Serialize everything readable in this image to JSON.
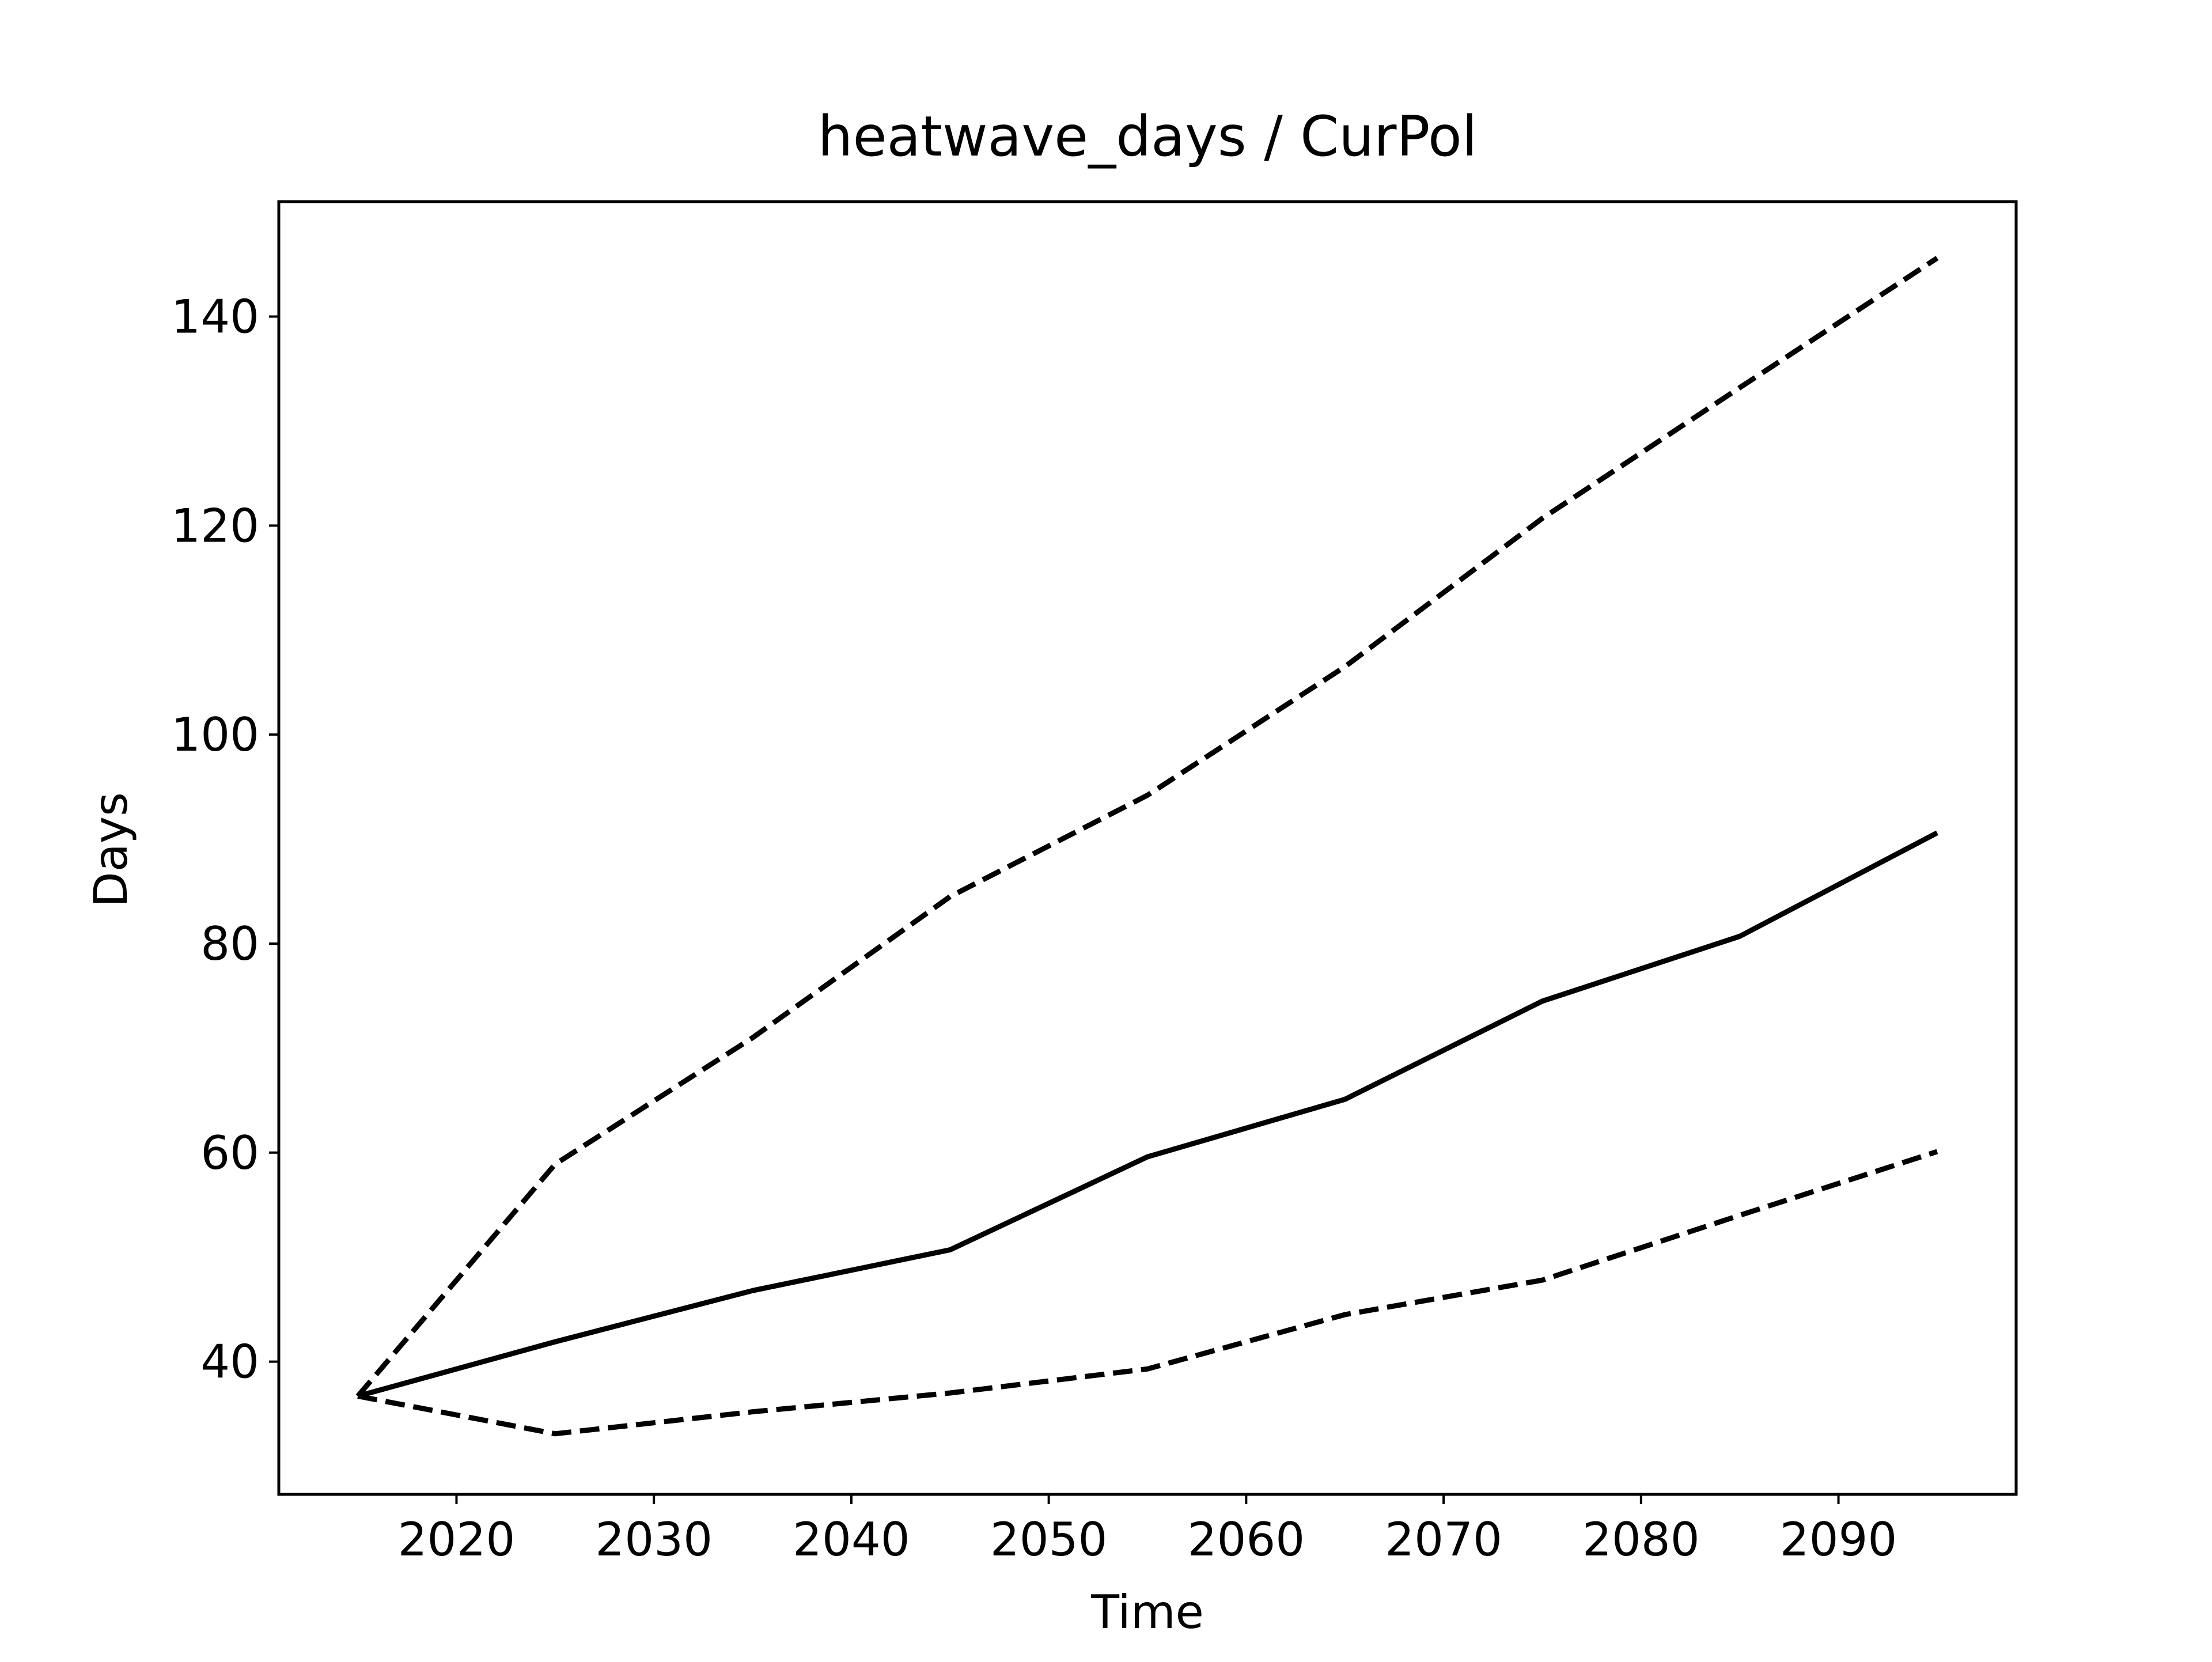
{
  "chart_data": {
    "type": "line",
    "title": "heatwave_days / CurPol",
    "xlabel": "Time",
    "ylabel": "Days",
    "x": [
      2015,
      2025,
      2035,
      2045,
      2055,
      2065,
      2075,
      2085,
      2095
    ],
    "series": [
      {
        "values": [
          36.7,
          58.9,
          71.0,
          84.5,
          94.2,
          106.5,
          120.7,
          133.2,
          145.6
        ],
        "style": "dashed",
        "color": "#000000"
      },
      {
        "values": [
          36.7,
          41.9,
          46.8,
          50.7,
          59.6,
          65.1,
          74.5,
          80.7,
          90.6
        ],
        "style": "solid",
        "color": "#000000"
      },
      {
        "values": [
          36.7,
          33.1,
          35.2,
          37.0,
          39.3,
          44.5,
          47.8,
          54.0,
          60.1
        ],
        "style": "dashed",
        "color": "#000000"
      }
    ],
    "xlim": [
      2011,
      2099
    ],
    "ylim": [
      27.3,
      151.0
    ],
    "xticks": [
      2020,
      2030,
      2040,
      2050,
      2060,
      2070,
      2080,
      2090
    ],
    "yticks": [
      40,
      60,
      80,
      100,
      120,
      140
    ],
    "grid": false,
    "legend": "none"
  }
}
